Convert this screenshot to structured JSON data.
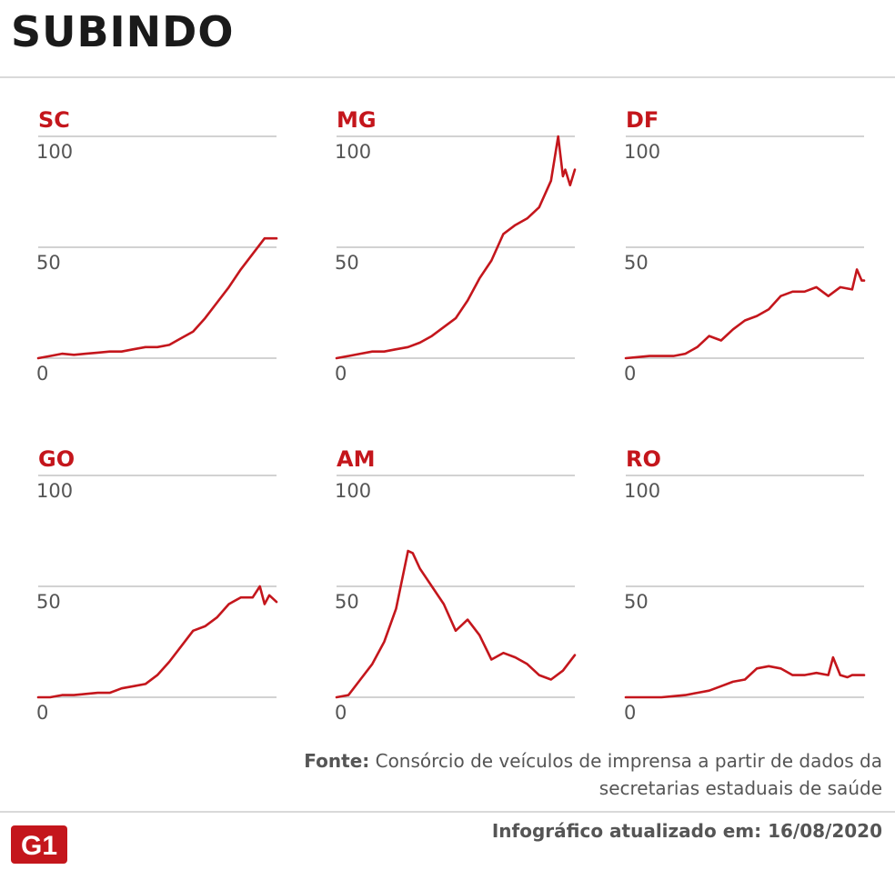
{
  "header": {
    "title": "SUBINDO"
  },
  "colors": {
    "line": "#c4161c",
    "label": "#c4161c",
    "grid": "#b8b8b8",
    "tick": "#555555"
  },
  "chart_data": [
    {
      "type": "line",
      "title": "SC",
      "ylim": [
        0,
        100
      ],
      "yticks": [
        0,
        50,
        100
      ],
      "grid": true,
      "x": [
        0,
        5,
        10,
        15,
        20,
        25,
        30,
        35,
        40,
        45,
        50,
        55,
        60,
        65,
        70,
        75,
        80,
        85,
        90,
        95,
        100
      ],
      "values": [
        0,
        1,
        2,
        1.5,
        2,
        2.5,
        3,
        3,
        4,
        5,
        5,
        6,
        9,
        12,
        18,
        25,
        32,
        40,
        47,
        54,
        54
      ]
    },
    {
      "type": "line",
      "title": "MG",
      "ylim": [
        0,
        100
      ],
      "yticks": [
        0,
        50,
        100
      ],
      "grid": true,
      "x": [
        0,
        5,
        10,
        15,
        20,
        25,
        30,
        35,
        40,
        45,
        50,
        55,
        60,
        65,
        70,
        75,
        80,
        85,
        90,
        93,
        95,
        96,
        98,
        100
      ],
      "values": [
        0,
        1,
        2,
        3,
        3,
        4,
        5,
        7,
        10,
        14,
        18,
        26,
        36,
        44,
        56,
        60,
        63,
        68,
        80,
        100,
        82,
        85,
        78,
        85
      ]
    },
    {
      "type": "line",
      "title": "DF",
      "ylim": [
        0,
        100
      ],
      "yticks": [
        0,
        50,
        100
      ],
      "grid": true,
      "x": [
        0,
        5,
        10,
        15,
        20,
        25,
        30,
        35,
        40,
        45,
        50,
        55,
        60,
        65,
        70,
        75,
        80,
        85,
        90,
        95,
        97,
        99,
        100
      ],
      "values": [
        0,
        0.5,
        1,
        1,
        1,
        2,
        5,
        10,
        8,
        13,
        17,
        19,
        22,
        28,
        30,
        30,
        32,
        28,
        32,
        31,
        40,
        35,
        35
      ]
    },
    {
      "type": "line",
      "title": "GO",
      "ylim": [
        0,
        100
      ],
      "yticks": [
        0,
        50,
        100
      ],
      "grid": true,
      "x": [
        0,
        5,
        10,
        15,
        20,
        25,
        30,
        35,
        40,
        45,
        50,
        55,
        60,
        65,
        70,
        75,
        80,
        85,
        90,
        93,
        95,
        97,
        100
      ],
      "values": [
        0,
        0,
        1,
        1,
        1.5,
        2,
        2,
        4,
        5,
        6,
        10,
        16,
        23,
        30,
        32,
        36,
        42,
        45,
        45,
        50,
        42,
        46,
        43
      ]
    },
    {
      "type": "line",
      "title": "AM",
      "ylim": [
        0,
        100
      ],
      "yticks": [
        0,
        50,
        100
      ],
      "grid": true,
      "x": [
        0,
        5,
        10,
        15,
        20,
        25,
        30,
        32,
        35,
        40,
        45,
        50,
        55,
        60,
        65,
        70,
        75,
        80,
        85,
        90,
        95,
        100
      ],
      "values": [
        0,
        1,
        8,
        15,
        25,
        40,
        66,
        65,
        58,
        50,
        42,
        30,
        35,
        28,
        17,
        20,
        18,
        15,
        10,
        8,
        12,
        19
      ]
    },
    {
      "type": "line",
      "title": "RO",
      "ylim": [
        0,
        100
      ],
      "yticks": [
        0,
        50,
        100
      ],
      "grid": true,
      "x": [
        0,
        5,
        10,
        15,
        20,
        25,
        30,
        35,
        40,
        45,
        50,
        55,
        60,
        65,
        70,
        75,
        80,
        85,
        87,
        90,
        93,
        95,
        100
      ],
      "values": [
        0,
        0,
        0,
        0,
        0.5,
        1,
        2,
        3,
        5,
        7,
        8,
        13,
        14,
        13,
        10,
        10,
        11,
        10,
        18,
        10,
        9,
        10,
        10
      ]
    }
  ],
  "footer": {
    "source_label": "Fonte:",
    "source_text": " Consórcio de veículos de imprensa a partir de dados da secretarias estaduais de saúde",
    "updated": "Infográfico atualizado em: 16/08/2020",
    "logo_text": "G1"
  }
}
